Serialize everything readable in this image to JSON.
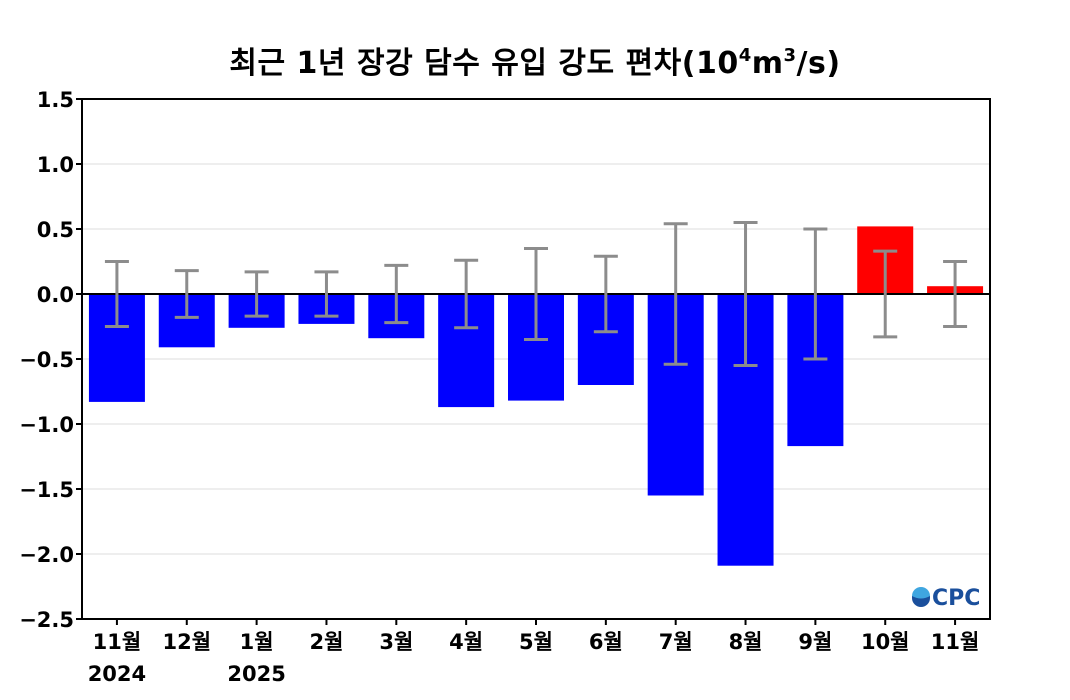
{
  "chart_data": {
    "type": "bar",
    "title": "최근 1년 장강 담수 유입 강도 편차(10",
    "title_exp1": "4",
    "title_mid": "m",
    "title_exp2": "3",
    "title_end": "/s)",
    "categories": [
      "11월",
      "12월",
      "1월",
      "2월",
      "3월",
      "4월",
      "5월",
      "6월",
      "7월",
      "8월",
      "9월",
      "10월",
      "11월"
    ],
    "year_labels": [
      "2024",
      "",
      "2025",
      "",
      "",
      "",
      "",
      "",
      "",
      "",
      "",
      "",
      ""
    ],
    "values": [
      -0.83,
      -0.41,
      -0.26,
      -0.23,
      -0.34,
      -0.87,
      -0.82,
      -0.7,
      -1.55,
      -2.09,
      -1.17,
      0.52,
      0.06
    ],
    "error": [
      0.25,
      0.18,
      0.17,
      0.17,
      0.22,
      0.26,
      0.35,
      0.29,
      0.54,
      0.55,
      0.5,
      0.33,
      0.25
    ],
    "ylim": [
      -2.5,
      1.5
    ],
    "yticks": [
      "1.5",
      "1.0",
      "0.5",
      "0.0",
      "−0.5",
      "−1.0",
      "−1.5",
      "−2.0",
      "−2.5"
    ],
    "ytick_values": [
      1.5,
      1.0,
      0.5,
      0.0,
      -0.5,
      -1.0,
      -1.5,
      -2.0,
      -2.5
    ],
    "grid": true,
    "colors": {
      "negative": "#0000ff",
      "positive": "#ff0000",
      "error_bar": "#8c8c8c",
      "grid": "#dcdcdc",
      "logo": "#1a4f9c",
      "logo_light": "#3fa6e0"
    },
    "logo_text": "CPC",
    "logo_icon": "ocean-drop-icon"
  }
}
